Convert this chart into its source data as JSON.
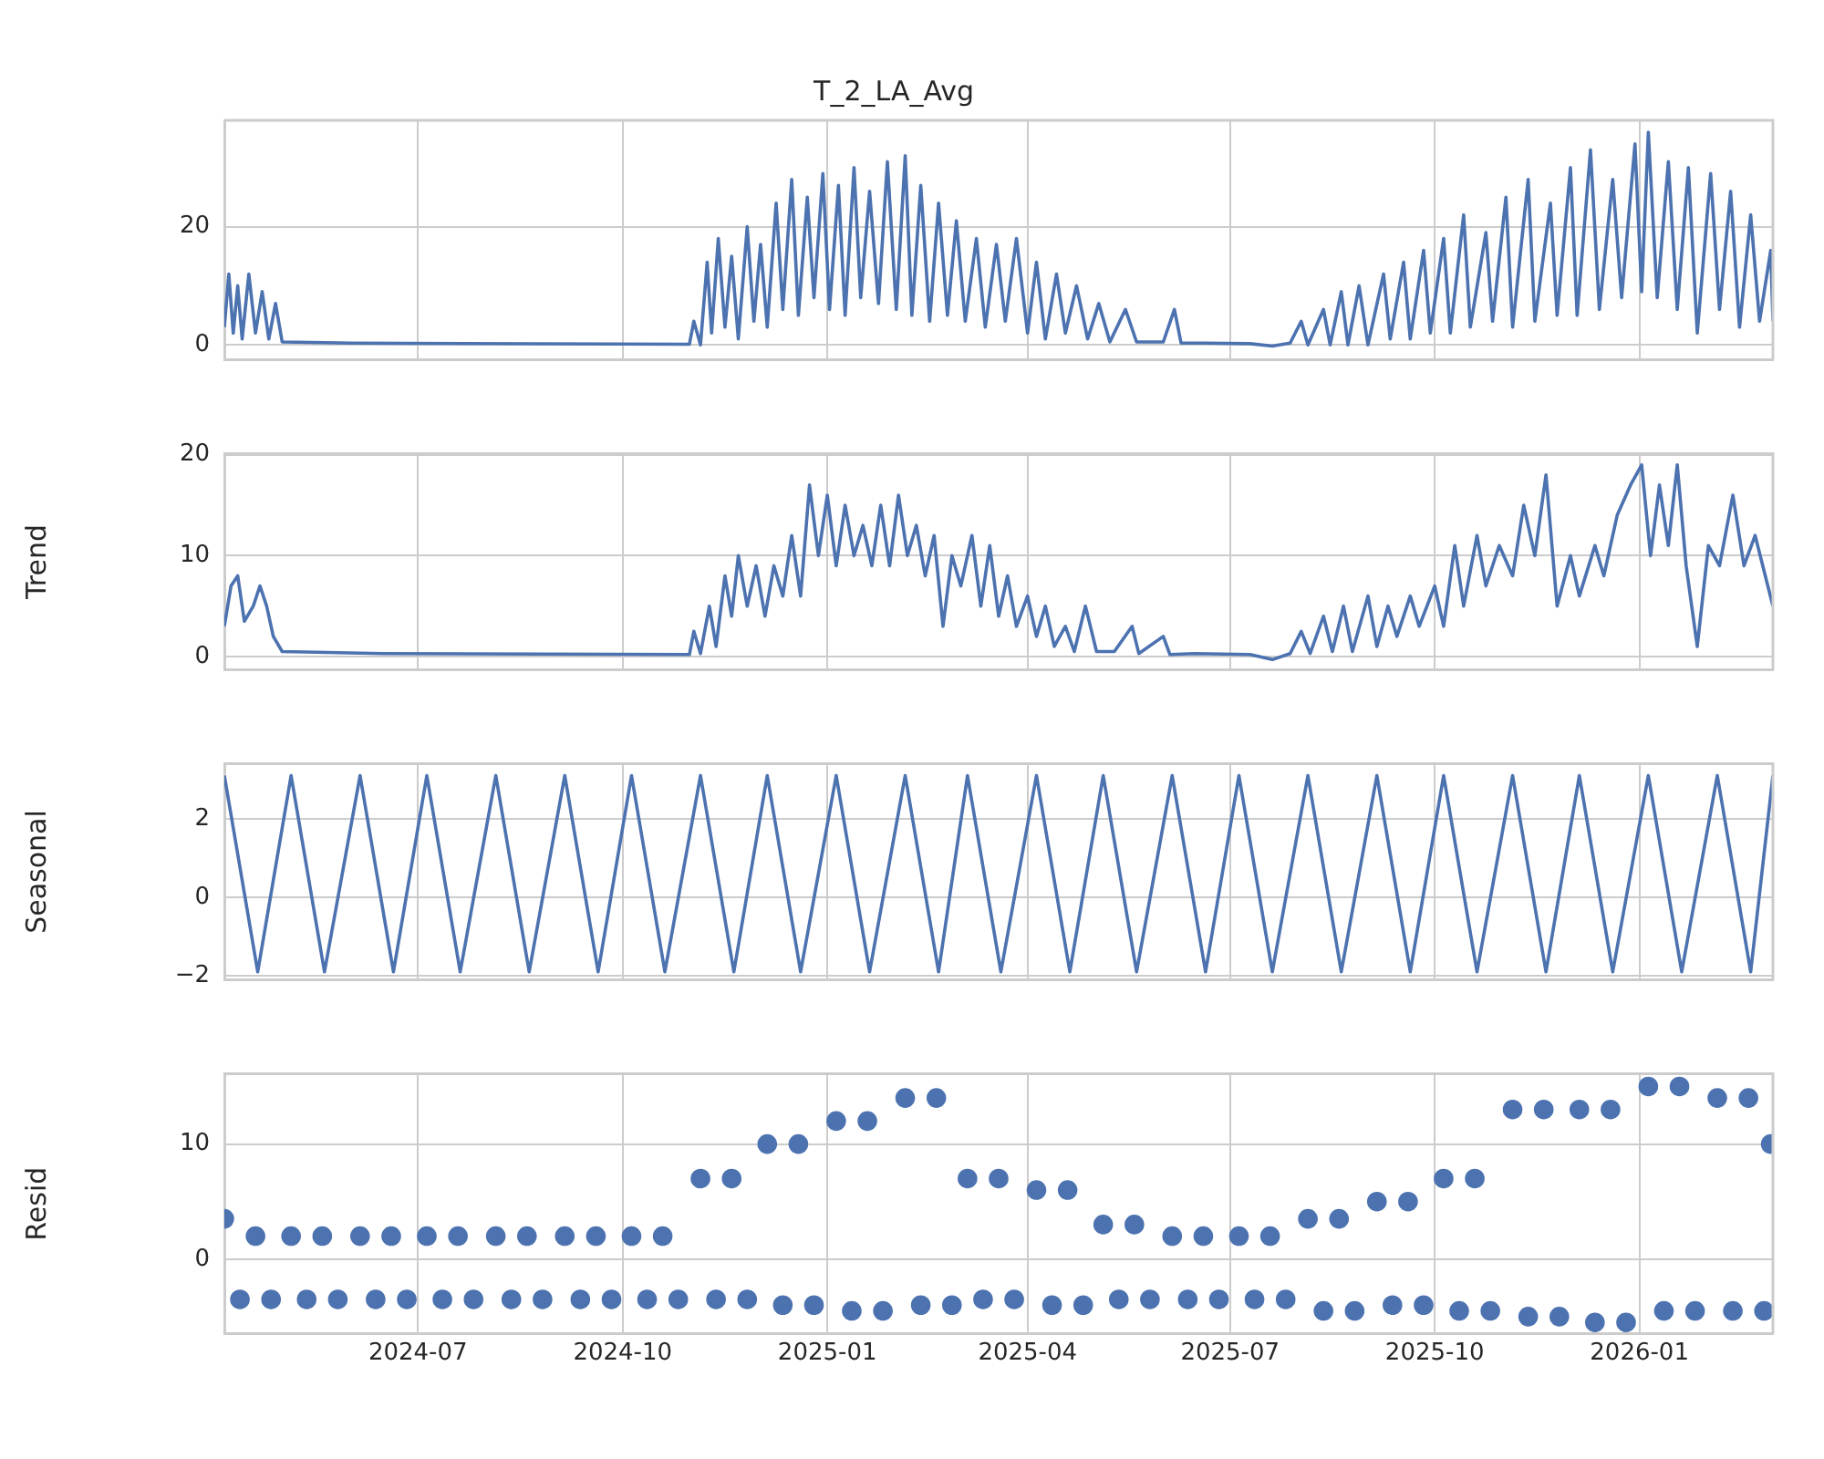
{
  "chart_data": [
    {
      "type": "line",
      "title": "T_2_LA_Avg",
      "grid": true,
      "tick_labels": "y",
      "xlim": [
        "2024-04-05",
        "2026-03-02"
      ],
      "xticks": [
        {
          "value": "2024-07-01",
          "label": null
        },
        {
          "value": "2024-10-01",
          "label": null
        },
        {
          "value": "2025-01-01",
          "label": null
        },
        {
          "value": "2025-04-01",
          "label": null
        },
        {
          "value": "2025-07-01",
          "label": null
        },
        {
          "value": "2025-10-01",
          "label": null
        },
        {
          "value": "2026-01-01",
          "label": null
        }
      ],
      "ylim": [
        -2.5,
        38
      ],
      "yticks": [
        0,
        20
      ],
      "marker": "none",
      "series": [
        {
          "color": "#4c72b0",
          "x": [
            "2024-04-05",
            "2024-04-07",
            "2024-04-09",
            "2024-04-11",
            "2024-04-13",
            "2024-04-16",
            "2024-04-19",
            "2024-04-22",
            "2024-04-25",
            "2024-04-28",
            "2024-05-01",
            "2024-06-01",
            "2024-10-31",
            "2024-11-02",
            "2024-11-05",
            "2024-11-08",
            "2024-11-10",
            "2024-11-13",
            "2024-11-16",
            "2024-11-19",
            "2024-11-22",
            "2024-11-26",
            "2024-11-29",
            "2024-12-02",
            "2024-12-05",
            "2024-12-09",
            "2024-12-12",
            "2024-12-16",
            "2024-12-19",
            "2024-12-23",
            "2024-12-26",
            "2024-12-30",
            "2025-01-02",
            "2025-01-06",
            "2025-01-09",
            "2025-01-13",
            "2025-01-16",
            "2025-01-20",
            "2025-01-24",
            "2025-01-28",
            "2025-02-01",
            "2025-02-05",
            "2025-02-08",
            "2025-02-12",
            "2025-02-16",
            "2025-02-20",
            "2025-02-24",
            "2025-02-28",
            "2025-03-04",
            "2025-03-09",
            "2025-03-13",
            "2025-03-18",
            "2025-03-22",
            "2025-03-27",
            "2025-04-01",
            "2025-04-05",
            "2025-04-09",
            "2025-04-14",
            "2025-04-18",
            "2025-04-23",
            "2025-04-28",
            "2025-05-03",
            "2025-05-08",
            "2025-05-15",
            "2025-05-20",
            "2025-06-01",
            "2025-06-06",
            "2025-06-09",
            "2025-06-20",
            "2025-07-10",
            "2025-07-20",
            "2025-07-28",
            "2025-08-02",
            "2025-08-05",
            "2025-08-12",
            "2025-08-15",
            "2025-08-20",
            "2025-08-23",
            "2025-08-28",
            "2025-09-01",
            "2025-09-08",
            "2025-09-11",
            "2025-09-17",
            "2025-09-20",
            "2025-09-26",
            "2025-09-29",
            "2025-10-05",
            "2025-10-08",
            "2025-10-14",
            "2025-10-17",
            "2025-10-24",
            "2025-10-27",
            "2025-11-02",
            "2025-11-05",
            "2025-11-12",
            "2025-11-15",
            "2025-11-22",
            "2025-11-25",
            "2025-12-01",
            "2025-12-04",
            "2025-12-10",
            "2025-12-14",
            "2025-12-20",
            "2025-12-24",
            "2025-12-30",
            "2026-01-02",
            "2026-01-05",
            "2026-01-09",
            "2026-01-14",
            "2026-01-18",
            "2026-01-23",
            "2026-01-27",
            "2026-02-02",
            "2026-02-06",
            "2026-02-11",
            "2026-02-15",
            "2026-02-20",
            "2026-02-24",
            "2026-03-01",
            "2026-03-02"
          ],
          "values": [
            3,
            12,
            2,
            10,
            1,
            12,
            2,
            9,
            1,
            7,
            0.5,
            0.3,
            0.1,
            4,
            0,
            14,
            2,
            18,
            3,
            15,
            1,
            20,
            4,
            17,
            3,
            24,
            6,
            28,
            5,
            25,
            8,
            29,
            6,
            27,
            5,
            30,
            8,
            26,
            7,
            31,
            6,
            32,
            5,
            27,
            4,
            24,
            5,
            21,
            4,
            18,
            3,
            17,
            4,
            18,
            2,
            14,
            1,
            12,
            2,
            10,
            1,
            7,
            0.5,
            6,
            0.5,
            0.5,
            6,
            0.3,
            0.3,
            0.2,
            -0.2,
            0.3,
            4,
            0,
            6,
            0,
            9,
            0,
            10,
            0,
            12,
            1,
            14,
            1,
            16,
            2,
            18,
            2,
            22,
            3,
            19,
            4,
            25,
            3,
            28,
            4,
            24,
            5,
            30,
            5,
            33,
            6,
            28,
            8,
            34,
            9,
            36,
            8,
            31,
            6,
            30,
            2,
            29,
            6,
            26,
            3,
            22,
            4,
            16,
            4
          ]
        }
      ]
    },
    {
      "type": "line",
      "ylabel": "Trend",
      "grid": true,
      "tick_labels": "y",
      "xlim": [
        "2024-04-05",
        "2026-03-02"
      ],
      "xticks": [
        {
          "value": "2024-07-01",
          "label": null
        },
        {
          "value": "2024-10-01",
          "label": null
        },
        {
          "value": "2025-01-01",
          "label": null
        },
        {
          "value": "2025-04-01",
          "label": null
        },
        {
          "value": "2025-07-01",
          "label": null
        },
        {
          "value": "2025-10-01",
          "label": null
        },
        {
          "value": "2026-01-01",
          "label": null
        }
      ],
      "ylim": [
        -1.3,
        20.1
      ],
      "yticks": [
        0,
        10,
        20
      ],
      "marker": "none",
      "series": [
        {
          "color": "#4c72b0",
          "x": [
            "2024-04-05",
            "2024-04-08",
            "2024-04-11",
            "2024-04-14",
            "2024-04-18",
            "2024-04-21",
            "2024-04-24",
            "2024-04-27",
            "2024-05-01",
            "2024-06-15",
            "2024-10-31",
            "2024-11-02",
            "2024-11-05",
            "2024-11-09",
            "2024-11-12",
            "2024-11-16",
            "2024-11-19",
            "2024-11-22",
            "2024-11-26",
            "2024-11-30",
            "2024-12-04",
            "2024-12-08",
            "2024-12-12",
            "2024-12-16",
            "2024-12-20",
            "2024-12-24",
            "2024-12-28",
            "2025-01-01",
            "2025-01-05",
            "2025-01-09",
            "2025-01-13",
            "2025-01-17",
            "2025-01-21",
            "2025-01-25",
            "2025-01-29",
            "2025-02-02",
            "2025-02-06",
            "2025-02-10",
            "2025-02-14",
            "2025-02-18",
            "2025-02-22",
            "2025-02-26",
            "2025-03-02",
            "2025-03-07",
            "2025-03-11",
            "2025-03-15",
            "2025-03-19",
            "2025-03-23",
            "2025-03-27",
            "2025-04-01",
            "2025-04-05",
            "2025-04-09",
            "2025-04-13",
            "2025-04-18",
            "2025-04-22",
            "2025-04-27",
            "2025-05-02",
            "2025-05-10",
            "2025-05-18",
            "2025-05-21",
            "2025-06-01",
            "2025-06-04",
            "2025-06-15",
            "2025-07-10",
            "2025-07-20",
            "2025-07-28",
            "2025-08-02",
            "2025-08-06",
            "2025-08-12",
            "2025-08-16",
            "2025-08-21",
            "2025-08-25",
            "2025-09-01",
            "2025-09-05",
            "2025-09-10",
            "2025-09-14",
            "2025-09-20",
            "2025-09-24",
            "2025-10-01",
            "2025-10-05",
            "2025-10-10",
            "2025-10-14",
            "2025-10-20",
            "2025-10-24",
            "2025-10-30",
            "2025-11-05",
            "2025-11-10",
            "2025-11-15",
            "2025-11-20",
            "2025-11-25",
            "2025-12-01",
            "2025-12-05",
            "2025-12-12",
            "2025-12-16",
            "2025-12-22",
            "2025-12-28",
            "2026-01-02",
            "2026-01-06",
            "2026-01-10",
            "2026-01-14",
            "2026-01-18",
            "2026-01-22",
            "2026-01-27",
            "2026-02-01",
            "2026-02-06",
            "2026-02-12",
            "2026-02-17",
            "2026-02-22",
            "2026-03-02"
          ],
          "values": [
            3,
            7,
            8,
            3.5,
            5,
            7,
            5,
            2,
            0.5,
            0.3,
            0.2,
            2.5,
            0.3,
            5,
            1,
            8,
            4,
            10,
            5,
            9,
            4,
            9,
            6,
            12,
            6,
            17,
            10,
            16,
            9,
            15,
            10,
            13,
            9,
            15,
            9,
            16,
            10,
            13,
            8,
            12,
            3,
            10,
            7,
            12,
            5,
            11,
            4,
            8,
            3,
            6,
            2,
            5,
            1,
            3,
            0.5,
            5,
            0.5,
            0.5,
            3,
            0.3,
            2,
            0.2,
            0.3,
            0.2,
            -0.3,
            0.3,
            2.5,
            0.3,
            4,
            0.5,
            5,
            0.5,
            6,
            1,
            5,
            2,
            6,
            3,
            7,
            3,
            11,
            5,
            12,
            7,
            11,
            8,
            15,
            10,
            18,
            5,
            10,
            6,
            11,
            8,
            14,
            17,
            19,
            10,
            17,
            11,
            19,
            9,
            1,
            11,
            9,
            16,
            9,
            12,
            5
          ]
        }
      ]
    },
    {
      "type": "line",
      "ylabel": "Seasonal",
      "grid": true,
      "tick_labels": "y",
      "xlim": [
        "2024-04-05",
        "2026-03-02"
      ],
      "xticks": [
        {
          "value": "2024-07-01",
          "label": null
        },
        {
          "value": "2024-10-01",
          "label": null
        },
        {
          "value": "2025-01-01",
          "label": null
        },
        {
          "value": "2025-04-01",
          "label": null
        },
        {
          "value": "2025-07-01",
          "label": null
        },
        {
          "value": "2025-10-01",
          "label": null
        },
        {
          "value": "2026-01-01",
          "label": null
        }
      ],
      "ylim": [
        -2.1,
        3.4
      ],
      "yticks": [
        -2,
        0,
        2
      ],
      "marker": "none",
      "series": [
        {
          "color": "#4c72b0",
          "x": [
            "2024-04-05",
            "2024-04-20",
            "2024-05-05",
            "2024-05-20",
            "2024-06-05",
            "2024-06-20",
            "2024-07-05",
            "2024-07-20",
            "2024-08-05",
            "2024-08-20",
            "2024-09-05",
            "2024-09-20",
            "2024-10-05",
            "2024-10-20",
            "2024-11-05",
            "2024-11-20",
            "2024-12-05",
            "2024-12-20",
            "2025-01-05",
            "2025-01-20",
            "2025-02-05",
            "2025-02-20",
            "2025-03-05",
            "2025-03-20",
            "2025-04-05",
            "2025-04-20",
            "2025-05-05",
            "2025-05-20",
            "2025-06-05",
            "2025-06-20",
            "2025-07-05",
            "2025-07-20",
            "2025-08-05",
            "2025-08-20",
            "2025-09-05",
            "2025-09-20",
            "2025-10-05",
            "2025-10-20",
            "2025-11-05",
            "2025-11-20",
            "2025-12-05",
            "2025-12-20",
            "2026-01-05",
            "2026-01-20",
            "2026-02-05",
            "2026-02-20",
            "2026-03-02"
          ],
          "values": [
            3.1,
            -1.9,
            3.1,
            -1.9,
            3.1,
            -1.9,
            3.1,
            -1.9,
            3.1,
            -1.9,
            3.1,
            -1.9,
            3.1,
            -1.9,
            3.1,
            -1.9,
            3.1,
            -1.9,
            3.1,
            -1.9,
            3.1,
            -1.9,
            3.1,
            -1.9,
            3.1,
            -1.9,
            3.1,
            -1.9,
            3.1,
            -1.9,
            3.1,
            -1.9,
            3.1,
            -1.9,
            3.1,
            -1.9,
            3.1,
            -1.9,
            3.1,
            -1.9,
            3.1,
            -1.9,
            3.1,
            -1.9,
            3.1,
            -1.9,
            3.1
          ]
        }
      ]
    },
    {
      "type": "scatter",
      "ylabel": "Resid",
      "grid": true,
      "xlim": [
        "2024-04-05",
        "2026-03-02"
      ],
      "xticks": [
        {
          "value": "2024-07-01",
          "label": "2024-07"
        },
        {
          "value": "2024-10-01",
          "label": "2024-10"
        },
        {
          "value": "2025-01-01",
          "label": "2025-01"
        },
        {
          "value": "2025-04-01",
          "label": "2025-04"
        },
        {
          "value": "2025-07-01",
          "label": "2025-07"
        },
        {
          "value": "2025-10-01",
          "label": "2025-10"
        },
        {
          "value": "2026-01-01",
          "label": "2026-01"
        }
      ],
      "ylim": [
        -6.5,
        16.1
      ],
      "yticks": [
        0,
        10
      ],
      "marker": "circle",
      "series": [
        {
          "color": "#4c72b0",
          "x": [
            "2024-04-05",
            "2024-04-12",
            "2024-04-19",
            "2024-04-26",
            "2024-05-05",
            "2024-05-12",
            "2024-05-19",
            "2024-05-26",
            "2024-06-05",
            "2024-06-12",
            "2024-06-19",
            "2024-06-26",
            "2024-07-05",
            "2024-07-12",
            "2024-07-19",
            "2024-07-26",
            "2024-08-05",
            "2024-08-12",
            "2024-08-19",
            "2024-08-26",
            "2024-09-05",
            "2024-09-12",
            "2024-09-19",
            "2024-09-26",
            "2024-10-05",
            "2024-10-12",
            "2024-10-19",
            "2024-10-26",
            "2024-11-05",
            "2024-11-12",
            "2024-11-19",
            "2024-11-26",
            "2024-12-05",
            "2024-12-12",
            "2024-12-19",
            "2024-12-26",
            "2025-01-05",
            "2025-01-12",
            "2025-01-19",
            "2025-01-26",
            "2025-02-05",
            "2025-02-12",
            "2025-02-19",
            "2025-02-26",
            "2025-03-05",
            "2025-03-12",
            "2025-03-19",
            "2025-03-26",
            "2025-04-05",
            "2025-04-12",
            "2025-04-19",
            "2025-04-26",
            "2025-05-05",
            "2025-05-12",
            "2025-05-19",
            "2025-05-26",
            "2025-06-05",
            "2025-06-12",
            "2025-06-19",
            "2025-06-26",
            "2025-07-05",
            "2025-07-12",
            "2025-07-19",
            "2025-07-26",
            "2025-08-05",
            "2025-08-12",
            "2025-08-19",
            "2025-08-26",
            "2025-09-05",
            "2025-09-12",
            "2025-09-19",
            "2025-09-26",
            "2025-10-05",
            "2025-10-12",
            "2025-10-19",
            "2025-10-26",
            "2025-11-05",
            "2025-11-12",
            "2025-11-19",
            "2025-11-26",
            "2025-12-05",
            "2025-12-12",
            "2025-12-19",
            "2025-12-26",
            "2026-01-05",
            "2026-01-12",
            "2026-01-19",
            "2026-01-26",
            "2026-02-05",
            "2026-02-12",
            "2026-02-19",
            "2026-02-26",
            "2026-03-01"
          ],
          "values": [
            3.5,
            -3.5,
            2,
            -3.5,
            2,
            -3.5,
            2,
            -3.5,
            2,
            -3.5,
            2,
            -3.5,
            2,
            -3.5,
            2,
            -3.5,
            2,
            -3.5,
            2,
            -3.5,
            2,
            -3.5,
            2,
            -3.5,
            2,
            -3.5,
            2,
            -3.5,
            7,
            -3.5,
            7,
            -3.5,
            10,
            -4,
            10,
            -4,
            12,
            -4.5,
            12,
            -4.5,
            14,
            -4,
            14,
            -4,
            7,
            -3.5,
            7,
            -3.5,
            6,
            -4,
            6,
            -4,
            3,
            -3.5,
            3,
            -3.5,
            2,
            -3.5,
            2,
            -3.5,
            2,
            -3.5,
            2,
            -3.5,
            3.5,
            -4.5,
            3.5,
            -4.5,
            5,
            -4,
            5,
            -4,
            7,
            -4.5,
            7,
            -4.5,
            13,
            -5,
            13,
            -5,
            13,
            -5.5,
            13,
            -5.5,
            15,
            -4.5,
            15,
            -4.5,
            14,
            -4.5,
            14,
            -4.5,
            10
          ]
        }
      ]
    }
  ]
}
